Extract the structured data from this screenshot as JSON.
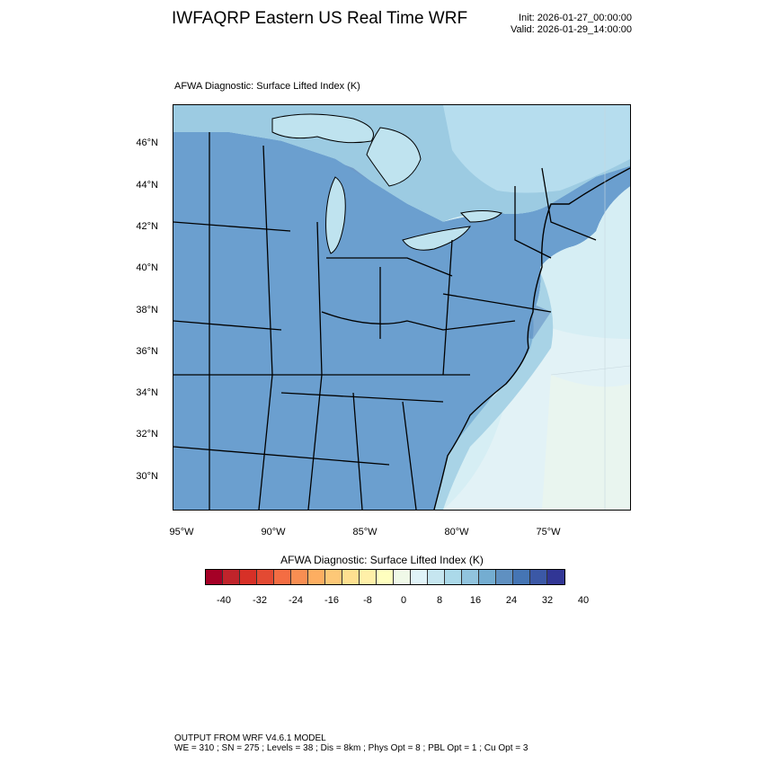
{
  "title": "IWFAQRP Eastern US Real Time WRF",
  "init": "Init: 2026-01-27_00:00:00",
  "valid": "Valid: 2026-01-29_14:00:00",
  "plot_subtitle": "AFWA Diagnostic: Surface Lifted Index   (K)",
  "lat_labels": [
    "46°N",
    "44°N",
    "42°N",
    "40°N",
    "38°N",
    "36°N",
    "34°N",
    "32°N",
    "30°N"
  ],
  "lon_labels": [
    "95°W",
    "90°W",
    "85°W",
    "80°W",
    "75°W"
  ],
  "colorbar": {
    "title": "AFWA Diagnostic: Surface Lifted Index  (K)",
    "labels": [
      "-40",
      "-32",
      "-24",
      "-16",
      "-8",
      "0",
      "8",
      "16",
      "24",
      "32",
      "40"
    ],
    "colors": [
      "#a50026",
      "#c0242b",
      "#d73027",
      "#e34a33",
      "#f46d43",
      "#f88e52",
      "#fdae61",
      "#fdc877",
      "#fee090",
      "#fff0a8",
      "#ffffbf",
      "#f0f9e8",
      "#e0f3f8",
      "#c6e6f0",
      "#abd9e9",
      "#91c4de",
      "#74add1",
      "#5f90c1",
      "#4575b4",
      "#3b58a6",
      "#313695"
    ]
  },
  "footer": {
    "line1": "OUTPUT FROM WRF V4.6.1 MODEL",
    "line2": "WE = 310 ; SN = 275 ; Levels = 38 ; Dis = 8km ; Phys Opt = 8 ; PBL Opt = 1 ; Cu Opt = 3"
  }
}
